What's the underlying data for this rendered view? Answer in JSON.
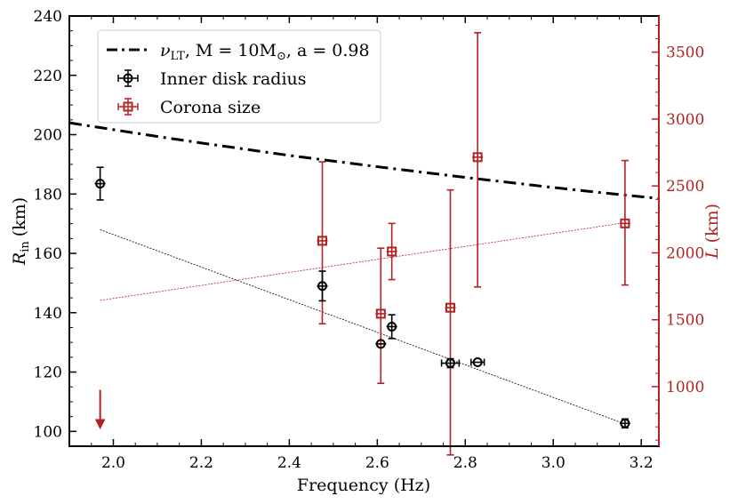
{
  "chart_data": {
    "type": "scatter",
    "xlabel": "Frequency (Hz)",
    "ylabel_left": "R_in (km)",
    "ylabel_left_main": "R",
    "ylabel_left_sub": "in",
    "ylabel_left_unit": "(km)",
    "ylabel_right": "L (km)",
    "ylabel_right_main": "L",
    "ylabel_right_unit": "(km)",
    "xlim": [
      1.9,
      3.24
    ],
    "ylim_left": [
      95,
      240
    ],
    "ylim_right": [
      555,
      3770
    ],
    "x_ticks": [
      2.0,
      2.2,
      2.4,
      2.6,
      2.8,
      3.0,
      3.2
    ],
    "x_tick_labels": [
      "2.0",
      "2.2",
      "2.4",
      "2.6",
      "2.8",
      "3.0",
      "3.2"
    ],
    "left_ticks": [
      100,
      120,
      140,
      160,
      180,
      200,
      220,
      240
    ],
    "left_tick_labels": [
      "100",
      "120",
      "140",
      "160",
      "180",
      "200",
      "220",
      "240"
    ],
    "right_ticks": [
      1000,
      1500,
      2000,
      2500,
      3000,
      3500
    ],
    "right_tick_labels": [
      "1000",
      "1500",
      "2000",
      "2500",
      "3000",
      "3500"
    ],
    "colors": {
      "black": "#000000",
      "red": "#b22222"
    },
    "legend": {
      "position": "top-left",
      "entries": [
        {
          "label": "ν_LT, M = 10M_⊙, a = 0.98",
          "nu": "ν",
          "lt": "LT",
          "rest": ", M = 10M",
          "sun": "⊙",
          "tail": ", a = 0.98",
          "marker": "dashdot"
        },
        {
          "label": "Inner disk radius",
          "marker": "circle"
        },
        {
          "label": "Corona size",
          "marker": "square"
        }
      ]
    },
    "series": [
      {
        "name": "ν_LT, M = 10M_⊙, a = 0.98",
        "axis": "left",
        "style": "dashdot",
        "x": [
          1.9,
          2.0,
          2.1,
          2.2,
          2.3,
          2.4,
          2.5,
          2.6,
          2.7,
          2.8,
          2.9,
          3.0,
          3.1,
          3.24
        ],
        "y": [
          204,
          201.7,
          199.4,
          197.2,
          195.1,
          193,
          191.1,
          189.2,
          187.4,
          185.6,
          183.9,
          182.2,
          180.6,
          178.5
        ]
      },
      {
        "name": "Inner disk radius",
        "axis": "left",
        "marker": "circle",
        "points": [
          {
            "x": 1.97,
            "y": 183.5,
            "yerr": [
              5.5,
              5.5
            ],
            "xerr": 0.0
          },
          {
            "x": 2.475,
            "y": 149,
            "yerr": [
              5,
              5
            ],
            "xerr": 0.0
          },
          {
            "x": 2.608,
            "y": 129.5,
            "yerr": [
              0,
              0
            ],
            "xerr": 0.0
          },
          {
            "x": 2.633,
            "y": 135.3,
            "yerr": [
              4,
              4
            ],
            "xerr": 0.0
          },
          {
            "x": 2.766,
            "y": 123,
            "yerr": [
              1.5,
              1.5
            ],
            "xerr": 0.02
          },
          {
            "x": 2.828,
            "y": 123.3,
            "yerr": [
              0,
              0
            ],
            "xerr": 0.015
          },
          {
            "x": 3.163,
            "y": 102.7,
            "yerr": [
              1.5,
              1.5
            ],
            "xerr": 0.01
          }
        ],
        "upper_limit_arrow": {
          "x": 1.97,
          "y_top": 114,
          "y_bottom": 101
        }
      },
      {
        "name": "Corona size",
        "axis": "right",
        "marker": "square",
        "points": [
          {
            "x": 2.475,
            "y": 2090,
            "yerr": [
              620,
              590
            ]
          },
          {
            "x": 2.608,
            "y": 1545,
            "yerr": [
              520,
              490
            ]
          },
          {
            "x": 2.633,
            "y": 2010,
            "yerr": [
              210,
              210
            ]
          },
          {
            "x": 2.766,
            "y": 1590,
            "yerr": [
              1100,
              880
            ]
          },
          {
            "x": 2.828,
            "y": 2715,
            "yerr": [
              970,
              930
            ]
          },
          {
            "x": 3.163,
            "y": 2220,
            "yerr": [
              460,
              470
            ]
          }
        ]
      },
      {
        "name": "Inner disk radius fit",
        "axis": "left",
        "style": "dotted",
        "x": [
          1.97,
          3.163
        ],
        "y": [
          168,
          102.5
        ]
      },
      {
        "name": "Corona size fit",
        "axis": "right",
        "style": "dotted",
        "x": [
          1.97,
          3.163
        ],
        "y": [
          1645,
          2225
        ]
      }
    ]
  }
}
